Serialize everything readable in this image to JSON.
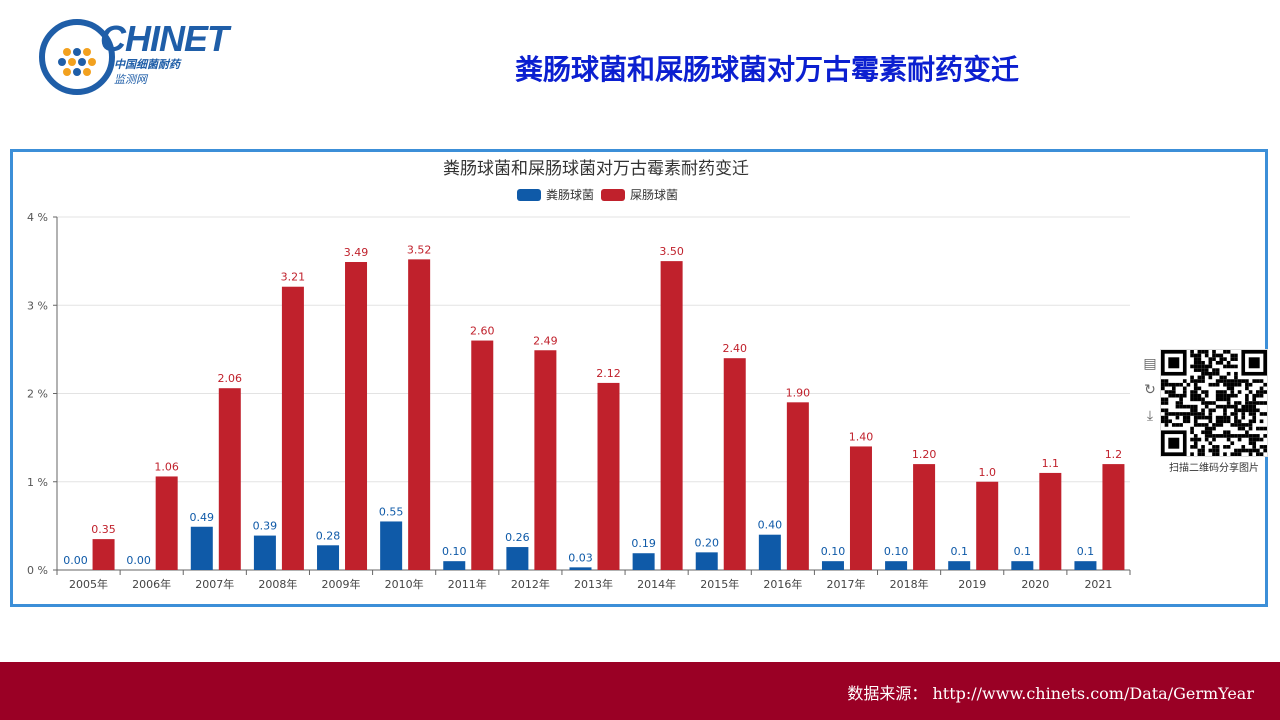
{
  "header": {
    "logo_brand": "CHINET",
    "logo_sub1": "中国细菌耐药",
    "logo_sub2": "监测网",
    "page_title": "粪肠球菌和屎肠球菌对万古霉素耐药变迁"
  },
  "chart_data": {
    "type": "bar",
    "title": "粪肠球菌和屎肠球菌对万古霉素耐药变迁",
    "categories": [
      "2005年",
      "2006年",
      "2007年",
      "2008年",
      "2009年",
      "2010年",
      "2011年",
      "2012年",
      "2013年",
      "2014年",
      "2015年",
      "2016年",
      "2017年",
      "2018年",
      "2019",
      "2020",
      "2021"
    ],
    "series": [
      {
        "name": "粪肠球菌",
        "color": "#0f5aa8",
        "values": [
          0.0,
          0.0,
          0.49,
          0.39,
          0.28,
          0.55,
          0.1,
          0.26,
          0.03,
          0.19,
          0.2,
          0.4,
          0.1,
          0.1,
          0.1,
          0.1,
          0.1
        ],
        "labels": [
          "0.00",
          "0.00",
          "0.49",
          "0.39",
          "0.28",
          "0.55",
          "0.10",
          "0.26",
          "0.03",
          "0.19",
          "0.20",
          "0.40",
          "0.10",
          "0.10",
          "0.1",
          "0.1",
          "0.1"
        ]
      },
      {
        "name": "屎肠球菌",
        "color": "#c0212c",
        "values": [
          0.35,
          1.06,
          2.06,
          3.21,
          3.49,
          3.52,
          2.6,
          2.49,
          2.12,
          3.5,
          2.4,
          1.9,
          1.4,
          1.2,
          1.0,
          1.1,
          1.2
        ],
        "labels": [
          "0.35",
          "1.06",
          "2.06",
          "3.21",
          "3.49",
          "3.52",
          "2.60",
          "2.49",
          "2.12",
          "3.50",
          "2.40",
          "1.90",
          "1.40",
          "1.20",
          "1.0",
          "1.1",
          "1.2"
        ]
      }
    ],
    "yticks": [
      "0 %",
      "1 %",
      "2 %",
      "3 %",
      "4 %"
    ],
    "ylim": [
      0,
      4
    ],
    "grid": true,
    "legend": "top-center"
  },
  "qr": {
    "caption": "扫描二维码分享图片"
  },
  "footer": {
    "source": "数据来源： http://www.chinets.com/Data/GermYear"
  }
}
